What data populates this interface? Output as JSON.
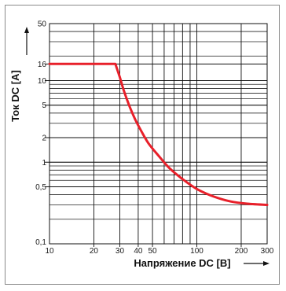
{
  "chart_data": {
    "type": "line",
    "title": "",
    "xlabel": "Напряжение DC [В]",
    "ylabel": "Ток DC [А]",
    "x_scale": "log",
    "y_scale": "log",
    "xlim": [
      10,
      300
    ],
    "ylim": [
      0.1,
      50
    ],
    "grid": true,
    "x_ticks": [
      {
        "value": 10,
        "label": "10"
      },
      {
        "value": 20,
        "label": "20"
      },
      {
        "value": 30,
        "label": "30"
      },
      {
        "value": 40,
        "label": "40"
      },
      {
        "value": 50,
        "label": "50"
      },
      {
        "value": 100,
        "label": "100"
      },
      {
        "value": 200,
        "label": "200"
      },
      {
        "value": 300,
        "label": "300"
      }
    ],
    "y_ticks": [
      {
        "value": 0.1,
        "label": "0,1"
      },
      {
        "value": 0.5,
        "label": "0,5"
      },
      {
        "value": 1,
        "label": "1"
      },
      {
        "value": 2,
        "label": "2"
      },
      {
        "value": 5,
        "label": "5"
      },
      {
        "value": 10,
        "label": "10"
      },
      {
        "value": 16,
        "label": "16"
      },
      {
        "value": 50,
        "label": "50"
      }
    ],
    "series": [
      {
        "color": "#e8202a",
        "points": [
          [
            10,
            16
          ],
          [
            28,
            16
          ],
          [
            30,
            11
          ],
          [
            32,
            7.5
          ],
          [
            35,
            4.8
          ],
          [
            38,
            3.4
          ],
          [
            42,
            2.4
          ],
          [
            47,
            1.7
          ],
          [
            55,
            1.2
          ],
          [
            65,
            0.85
          ],
          [
            80,
            0.62
          ],
          [
            100,
            0.47
          ],
          [
            130,
            0.38
          ],
          [
            170,
            0.33
          ],
          [
            220,
            0.31
          ],
          [
            300,
            0.3
          ]
        ]
      }
    ]
  }
}
